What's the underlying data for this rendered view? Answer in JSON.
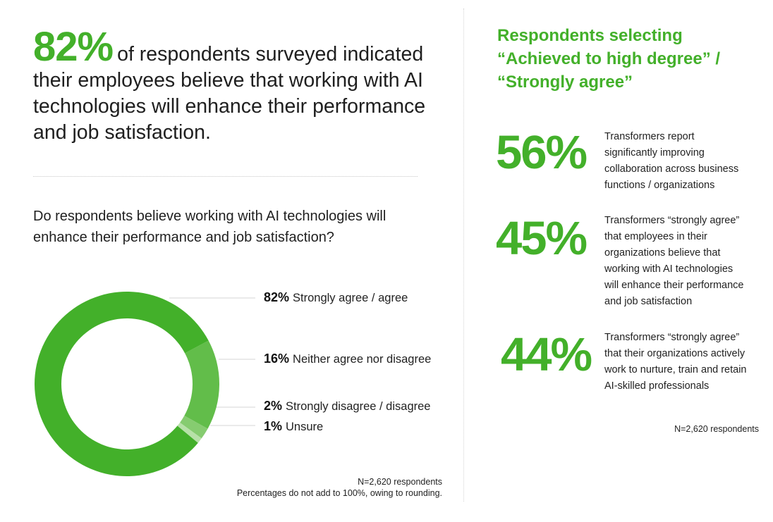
{
  "headline": {
    "percent": "82%",
    "text": "of respondents surveyed indicated their employees believe that working with AI technologies will enhance their performance and job satisfaction."
  },
  "question": "Do respondents believe working with AI technologies will enhance their performance and job satisfaction?",
  "chart_data": {
    "type": "pie",
    "categories": [
      "Strongly agree / agree",
      "Neither agree nor disagree",
      "Strongly disagree / disagree",
      "Unsure"
    ],
    "values": [
      82,
      16,
      2,
      1
    ],
    "labels": [
      "82%",
      "16%",
      "2%",
      "1%"
    ],
    "colors": [
      "#43b02a",
      "#62bd4a",
      "#86cc70",
      "#b7e1a8"
    ],
    "donut": true,
    "legend": "right"
  },
  "left_note": {
    "line1": "N=2,620 respondents",
    "line2": "Percentages do not add to 100%, owing to rounding."
  },
  "right": {
    "title_line1": "Respondents selecting",
    "title_line2": "“Achieved to high degree” /",
    "title_line3": "“Strongly agree”",
    "stats": [
      {
        "value": "56%",
        "lines": [
          "Transformers report",
          "significantly improving",
          "collaboration across business",
          "functions / organizations"
        ]
      },
      {
        "value": "45%",
        "lines": [
          "Transformers “strongly agree”",
          "that employees in their",
          "organizations believe that",
          "working with AI technologies",
          "will enhance their performance",
          "and job satisfaction"
        ]
      },
      {
        "value": "44%",
        "lines": [
          "Transformers “strongly agree”",
          "that their organizations actively",
          "work to nurture, train and retain",
          "AI-skilled professionals"
        ]
      }
    ],
    "note": "N=2,620 respondents"
  }
}
